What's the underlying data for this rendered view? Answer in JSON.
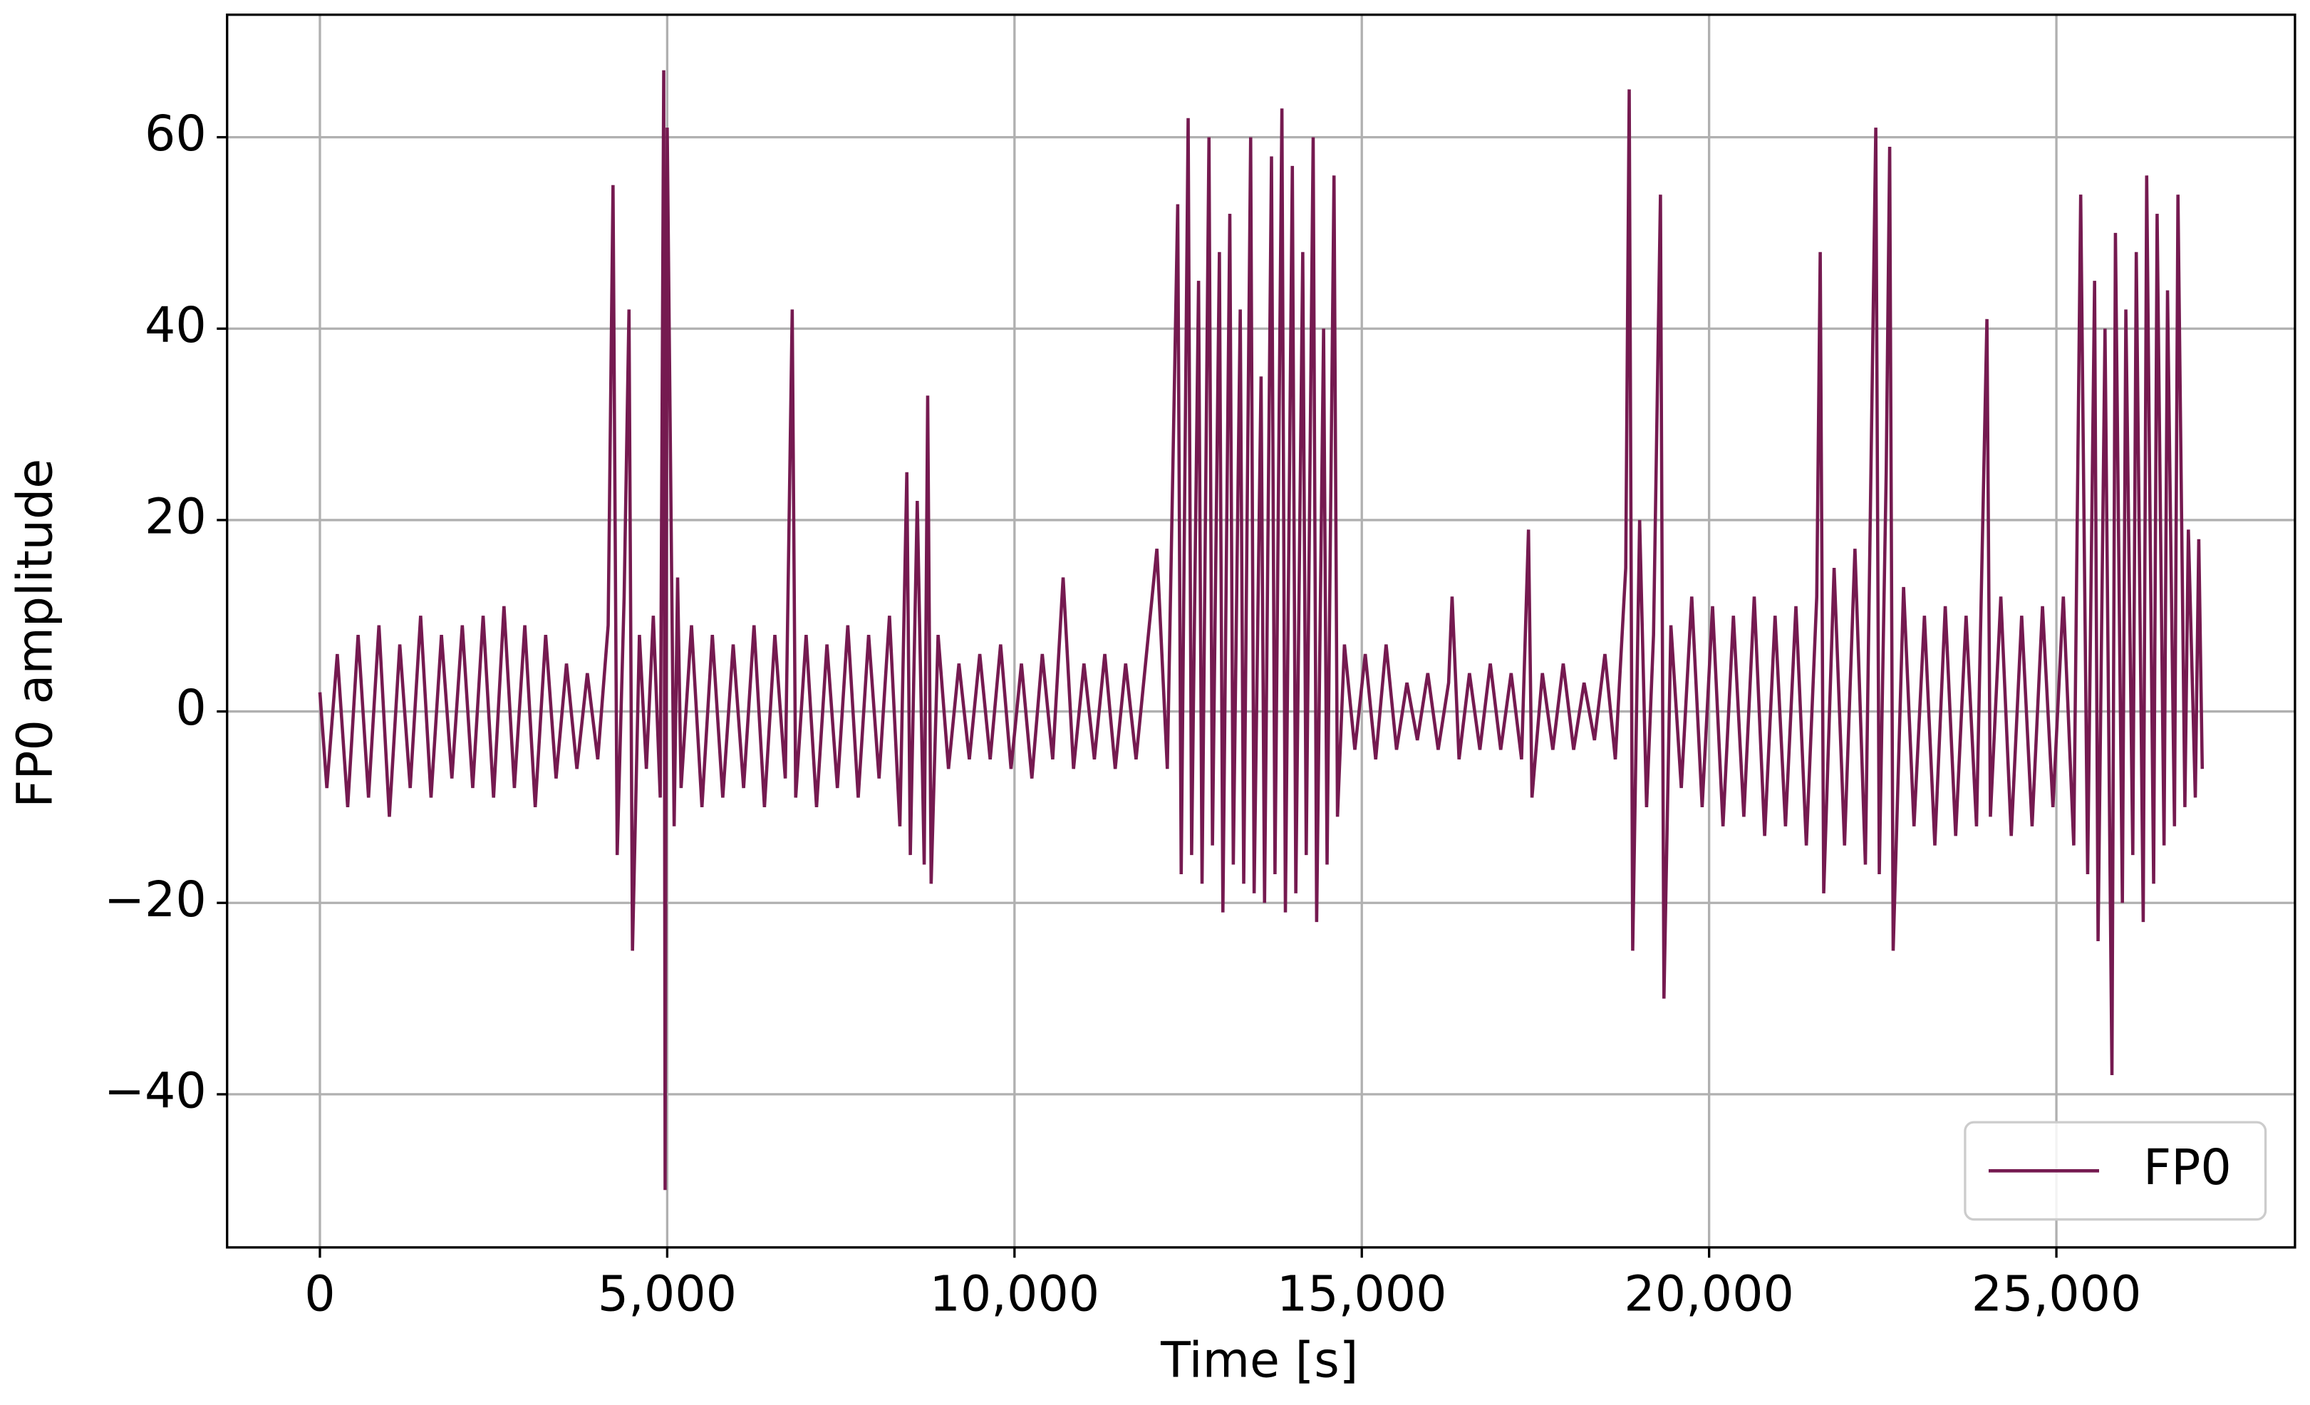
{
  "chart_data": {
    "type": "line",
    "xlabel": "Time [s]",
    "ylabel": "FP0 amplitude",
    "x": [
      0,
      100,
      250,
      400,
      550,
      700,
      850,
      1000,
      1150,
      1300,
      1450,
      1600,
      1750,
      1900,
      2050,
      2200,
      2350,
      2500,
      2650,
      2800,
      2950,
      3100,
      3250,
      3400,
      3550,
      3700,
      3850,
      4000,
      4150,
      4220,
      4280,
      4380,
      4450,
      4500,
      4600,
      4700,
      4800,
      4900,
      4950,
      4970,
      5000,
      5100,
      5150,
      5200,
      5350,
      5500,
      5650,
      5800,
      5950,
      6100,
      6250,
      6400,
      6550,
      6700,
      6800,
      6850,
      7000,
      7150,
      7300,
      7450,
      7600,
      7750,
      7900,
      8050,
      8200,
      8350,
      8450,
      8500,
      8600,
      8700,
      8750,
      8800,
      8900,
      9050,
      9200,
      9350,
      9500,
      9650,
      9800,
      9950,
      10100,
      10250,
      10400,
      10550,
      10700,
      10850,
      11000,
      11150,
      11300,
      11450,
      11600,
      11750,
      11900,
      12050,
      12200,
      12350,
      12400,
      12500,
      12550,
      12650,
      12700,
      12800,
      12850,
      12950,
      13000,
      13100,
      13150,
      13250,
      13300,
      13400,
      13450,
      13550,
      13600,
      13700,
      13750,
      13850,
      13900,
      14000,
      14050,
      14150,
      14200,
      14300,
      14350,
      14450,
      14500,
      14600,
      14650,
      14750,
      14900,
      15050,
      15200,
      15350,
      15500,
      15650,
      15800,
      15950,
      16100,
      16250,
      16300,
      16400,
      16550,
      16700,
      16850,
      17000,
      17150,
      17300,
      17400,
      17450,
      17600,
      17750,
      17900,
      18050,
      18200,
      18350,
      18500,
      18650,
      18800,
      18850,
      18900,
      19000,
      19100,
      19200,
      19300,
      19350,
      19450,
      19600,
      19750,
      19900,
      20050,
      20200,
      20350,
      20500,
      20650,
      20800,
      20950,
      21100,
      21250,
      21400,
      21550,
      21600,
      21650,
      21800,
      21950,
      22100,
      22250,
      22400,
      22450,
      22550,
      22600,
      22650,
      22800,
      22950,
      23100,
      23250,
      23400,
      23550,
      23700,
      23850,
      24000,
      24050,
      24200,
      24350,
      24500,
      24650,
      24800,
      24950,
      25100,
      25250,
      25350,
      25450,
      25550,
      25600,
      25700,
      25800,
      25850,
      25950,
      26000,
      26100,
      26150,
      26250,
      26300,
      26400,
      26450,
      26550,
      26600,
      26700,
      26750,
      26850,
      26900,
      27000,
      27050,
      27100
    ],
    "series": [
      {
        "name": "FP0",
        "color": "#751a50",
        "values": [
          2,
          -8,
          6,
          -10,
          8,
          -9,
          9,
          -11,
          7,
          -8,
          10,
          -9,
          8,
          -7,
          9,
          -8,
          10,
          -9,
          11,
          -8,
          9,
          -10,
          8,
          -7,
          5,
          -6,
          4,
          -5,
          9,
          55,
          -15,
          12,
          42,
          -25,
          8,
          -6,
          10,
          -9,
          67,
          -50,
          61,
          -12,
          14,
          -8,
          9,
          -10,
          8,
          -9,
          7,
          -8,
          9,
          -10,
          8,
          -7,
          42,
          -9,
          8,
          -10,
          7,
          -8,
          9,
          -9,
          8,
          -7,
          10,
          -12,
          25,
          -15,
          22,
          -16,
          33,
          -18,
          8,
          -6,
          5,
          -5,
          6,
          -5,
          7,
          -6,
          5,
          -7,
          6,
          -5,
          14,
          -6,
          5,
          -5,
          6,
          -6,
          5,
          -5,
          6,
          17,
          -6,
          53,
          -17,
          62,
          -15,
          45,
          -18,
          60,
          -14,
          48,
          -21,
          52,
          -16,
          42,
          -18,
          60,
          -19,
          35,
          -20,
          58,
          -17,
          63,
          -21,
          57,
          -19,
          48,
          -15,
          60,
          -22,
          40,
          -16,
          56,
          -11,
          7,
          -4,
          6,
          -5,
          7,
          -4,
          3,
          -3,
          4,
          -4,
          3,
          12,
          -5,
          4,
          -4,
          5,
          -4,
          4,
          -5,
          19,
          -9,
          4,
          -4,
          5,
          -4,
          3,
          -3,
          6,
          -5,
          15,
          65,
          -25,
          20,
          -10,
          8,
          54,
          -30,
          9,
          -8,
          12,
          -10,
          11,
          -12,
          10,
          -11,
          12,
          -13,
          10,
          -12,
          11,
          -14,
          12,
          48,
          -19,
          15,
          -14,
          17,
          -16,
          61,
          -17,
          25,
          59,
          -25,
          13,
          -12,
          10,
          -14,
          11,
          -13,
          10,
          -12,
          41,
          -11,
          12,
          -13,
          10,
          -12,
          11,
          -10,
          12,
          -14,
          54,
          -17,
          45,
          -24,
          40,
          -38,
          50,
          -20,
          42,
          -15,
          48,
          -22,
          56,
          -18,
          52,
          -14,
          44,
          -12,
          54,
          -10,
          19,
          -9,
          18,
          -6
        ]
      }
    ],
    "xlim": [
      -1336,
      28435
    ],
    "xticks": [
      0,
      {
        "value": 5000,
        "label": "5,000"
      },
      {
        "value": 10000,
        "label": "10,000"
      },
      {
        "value": 15000,
        "label": "15,000"
      },
      {
        "value": 20000,
        "label": "20,000"
      },
      {
        "value": 25000,
        "label": "25,000"
      }
    ],
    "ylim": [
      -56,
      72.8
    ],
    "yticks": [
      {
        "value": -40,
        "label": "−40"
      },
      {
        "value": -20,
        "label": "−20"
      },
      0,
      20,
      40,
      60
    ],
    "grid": true,
    "legend": "lower right"
  }
}
